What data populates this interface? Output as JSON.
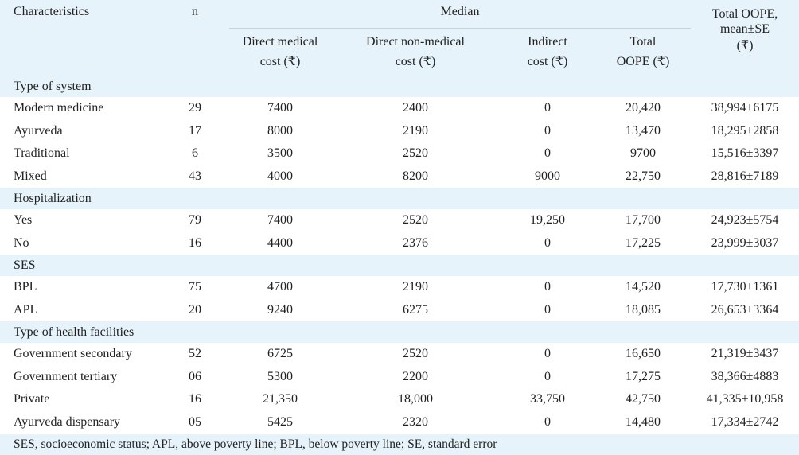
{
  "columns": {
    "characteristics": "Characteristics",
    "n": "n",
    "median": "Median",
    "direct_medical_l1": "Direct medical",
    "direct_medical_l2": "cost (₹)",
    "direct_nonmedical_l1": "Direct non-medical",
    "direct_nonmedical_l2": "cost (₹)",
    "indirect_l1": "Indirect",
    "indirect_l2": "cost (₹)",
    "total_l1": "Total",
    "total_l2": "OOPE (₹)",
    "total_mean_l1": "Total OOPE,",
    "total_mean_l2": "mean±SE",
    "total_mean_l3": "(₹)"
  },
  "groups": [
    {
      "title": "Type of system",
      "rows": [
        {
          "label": "Modern medicine",
          "n": "29",
          "direct_medical": "7400",
          "direct_nonmedical": "2400",
          "indirect": "0",
          "total": "20,420",
          "mean_se": "38,994±6175"
        },
        {
          "label": "Ayurveda",
          "n": "17",
          "direct_medical": "8000",
          "direct_nonmedical": "2190",
          "indirect": "0",
          "total": "13,470",
          "mean_se": "18,295±2858"
        },
        {
          "label": "Traditional",
          "n": "6",
          "direct_medical": "3500",
          "direct_nonmedical": "2520",
          "indirect": "0",
          "total": "9700",
          "mean_se": "15,516±3397"
        },
        {
          "label": "Mixed",
          "n": "43",
          "direct_medical": "4000",
          "direct_nonmedical": "8200",
          "indirect": "9000",
          "total": "22,750",
          "mean_se": "28,816±7189"
        }
      ]
    },
    {
      "title": "Hospitalization",
      "rows": [
        {
          "label": "Yes",
          "n": "79",
          "direct_medical": "7400",
          "direct_nonmedical": "2520",
          "indirect": "19,250",
          "total": "17,700",
          "mean_se": "24,923±5754"
        },
        {
          "label": "No",
          "n": "16",
          "direct_medical": "4400",
          "direct_nonmedical": "2376",
          "indirect": "0",
          "total": "17,225",
          "mean_se": "23,999±3037"
        }
      ]
    },
    {
      "title": "SES",
      "rows": [
        {
          "label": "BPL",
          "n": "75",
          "direct_medical": "4700",
          "direct_nonmedical": "2190",
          "indirect": "0",
          "total": "14,520",
          "mean_se": "17,730±1361"
        },
        {
          "label": "APL",
          "n": "20",
          "direct_medical": "9240",
          "direct_nonmedical": "6275",
          "indirect": "0",
          "total": "18,085",
          "mean_se": "26,653±3364"
        }
      ]
    },
    {
      "title": "Type of health facilities",
      "rows": [
        {
          "label": "Government secondary",
          "n": "52",
          "direct_medical": "6725",
          "direct_nonmedical": "2520",
          "indirect": "0",
          "total": "16,650",
          "mean_se": "21,319±3437"
        },
        {
          "label": "Government tertiary",
          "n": "06",
          "direct_medical": "5300",
          "direct_nonmedical": "2200",
          "indirect": "0",
          "total": "17,275",
          "mean_se": "38,366±4883"
        },
        {
          "label": "Private",
          "n": "16",
          "direct_medical": "21,350",
          "direct_nonmedical": "18,000",
          "indirect": "33,750",
          "total": "42,750",
          "mean_se": "41,335±10,958"
        },
        {
          "label": "Ayurveda dispensary",
          "n": "05",
          "direct_medical": "5425",
          "direct_nonmedical": "2320",
          "indirect": "0",
          "total": "14,480",
          "mean_se": "17,334±2742"
        }
      ]
    }
  ],
  "footnote": "SES, socioeconomic status; APL, above poverty line; BPL, below poverty line; SE, standard error",
  "colors": {
    "header_band": "#e6f3fb",
    "rule": "#b9d5e6",
    "text": "#222222"
  }
}
